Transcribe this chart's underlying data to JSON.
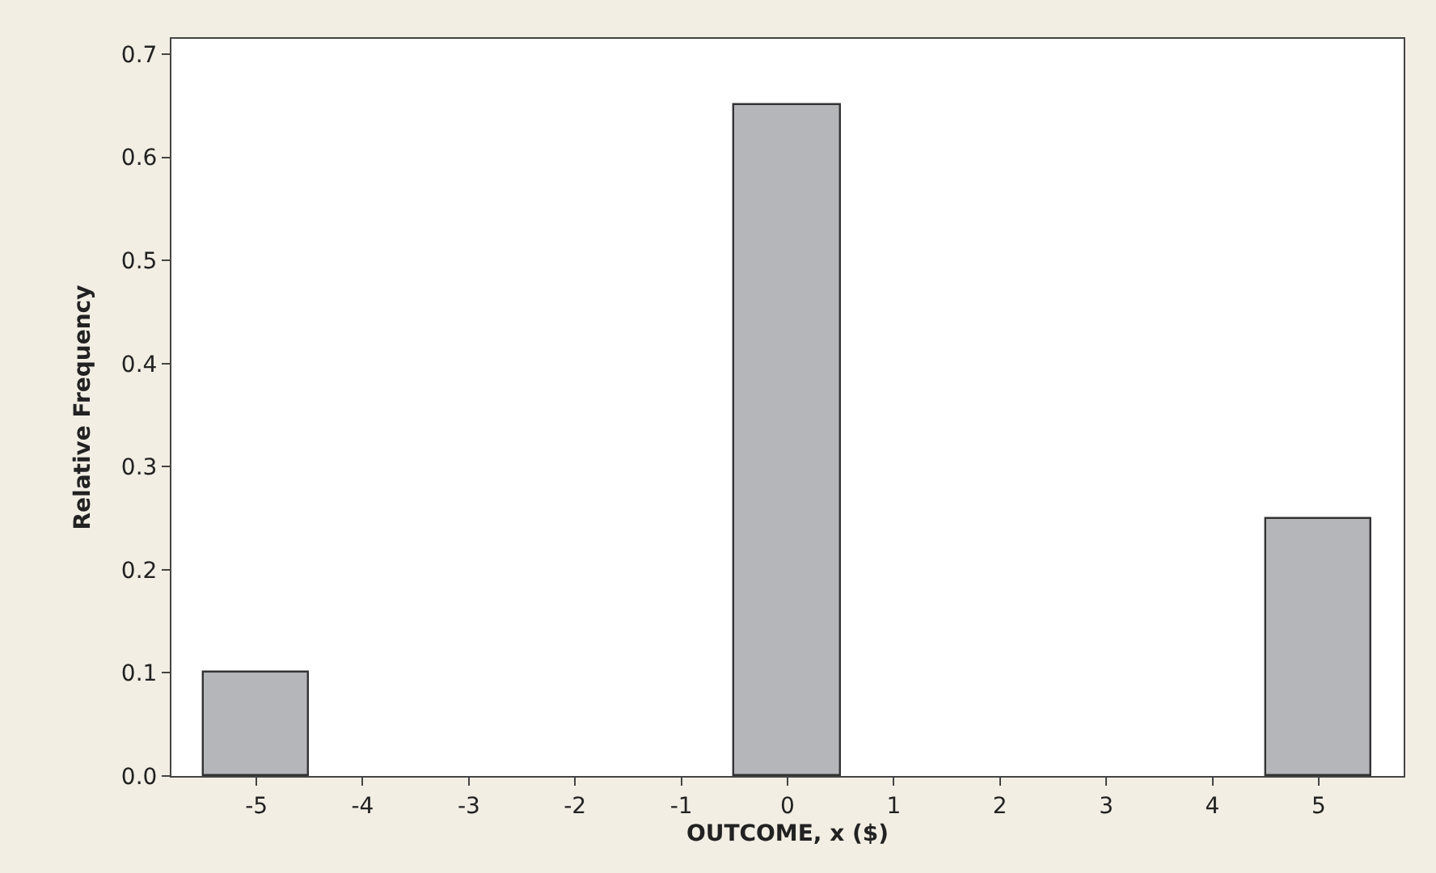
{
  "chart_data": {
    "type": "bar",
    "xlabel": "OUTCOME, x ($)",
    "ylabel": "Relative Frequency",
    "x": [
      -5,
      0,
      5
    ],
    "values": [
      0.1,
      0.65,
      0.25
    ],
    "color": "#b5b6ba",
    "xlim": [
      -5.8,
      5.8
    ],
    "xticks": [
      -5,
      -4,
      -3,
      -2,
      -1,
      0,
      1,
      2,
      3,
      4,
      5
    ],
    "ylim": [
      0,
      0.715
    ],
    "yticks": [
      {
        "value": 0,
        "label": "0.0"
      },
      0.1,
      0.2,
      0.3,
      0.4,
      0.5,
      0.6,
      0.7
    ]
  }
}
